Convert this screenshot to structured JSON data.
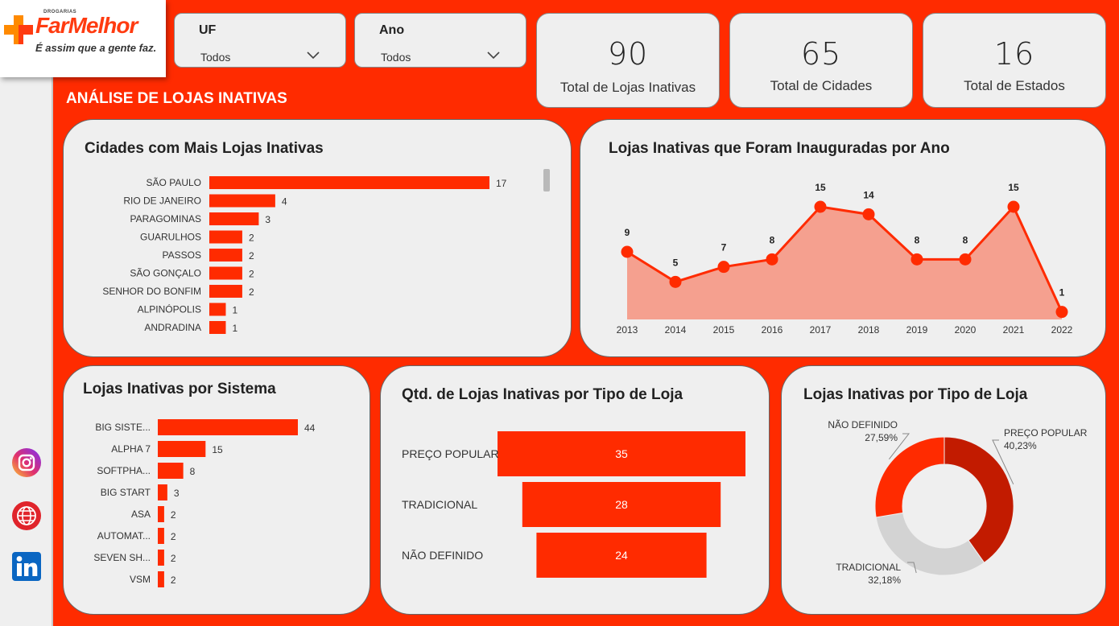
{
  "brand": {
    "small": "DROGARIAS",
    "name": "FarMelhor",
    "slogan": "É assim que a gente faz."
  },
  "social": {
    "instagram": "instagram-icon",
    "web": "globe-icon",
    "linkedin": "linkedin-icon"
  },
  "colors": {
    "accent": "#ff2b00",
    "panel": "#efefef",
    "bar": "#ff2b00",
    "area": "#f5a08f",
    "dark_red": "#c21b00",
    "gray": "#d3d3d3"
  },
  "filters": {
    "uf": {
      "label": "UF",
      "value": "Todos"
    },
    "ano": {
      "label": "Ano",
      "value": "Todos"
    }
  },
  "kpis": [
    {
      "value": "90",
      "label": "Total de Lojas Inativas"
    },
    {
      "value": "65",
      "label": "Total de Cidades"
    },
    {
      "value": "16",
      "label": "Total de Estados"
    }
  ],
  "section_title": "ANÁLISE DE LOJAS INATIVAS",
  "chart_data": [
    {
      "id": "cities",
      "type": "bar",
      "orientation": "horizontal",
      "title": "Cidades com Mais Lojas Inativas",
      "categories": [
        "SÃO PAULO",
        "RIO DE JANEIRO",
        "PARAGOMINAS",
        "GUARULHOS",
        "PASSOS",
        "SÃO GONÇALO",
        "SENHOR DO BONFIM",
        "ALPINÓPOLIS",
        "ANDRADINA"
      ],
      "values": [
        17,
        4,
        3,
        2,
        2,
        2,
        2,
        1,
        1
      ],
      "xlim": [
        0,
        17
      ]
    },
    {
      "id": "years",
      "type": "area",
      "title": "Lojas Inativas que Foram Inauguradas por Ano",
      "x": [
        "2013",
        "2014",
        "2015",
        "2016",
        "2017",
        "2018",
        "2019",
        "2020",
        "2021",
        "2022"
      ],
      "values": [
        9,
        5,
        7,
        8,
        15,
        14,
        8,
        8,
        15,
        1
      ],
      "ylim": [
        0,
        15
      ]
    },
    {
      "id": "systems",
      "type": "bar",
      "orientation": "horizontal",
      "title": "Lojas Inativas por Sistema",
      "categories": [
        "BIG SISTE...",
        "ALPHA 7",
        "SOFTPHA...",
        "BIG START",
        "ASA",
        "AUTOMAT...",
        "SEVEN SH...",
        "VSM"
      ],
      "values": [
        44,
        15,
        8,
        3,
        2,
        2,
        2,
        2
      ],
      "xlim": [
        0,
        44
      ]
    },
    {
      "id": "funnel",
      "type": "bar",
      "orientation": "funnel",
      "title": "Qtd. de Lojas Inativas por Tipo de Loja",
      "categories": [
        "PREÇO POPULAR",
        "TRADICIONAL",
        "NÃO DEFINIDO"
      ],
      "values": [
        35,
        28,
        24
      ]
    },
    {
      "id": "donut",
      "type": "pie",
      "title": "Lojas Inativas por Tipo de Loja",
      "categories": [
        "PREÇO POPULAR",
        "TRADICIONAL",
        "NÃO DEFINIDO"
      ],
      "values": [
        40.23,
        32.18,
        27.59
      ],
      "value_labels": [
        "40,23%",
        "32,18%",
        "27,59%"
      ],
      "colors": [
        "#c21b00",
        "#d3d3d3",
        "#ff2b00"
      ]
    }
  ]
}
